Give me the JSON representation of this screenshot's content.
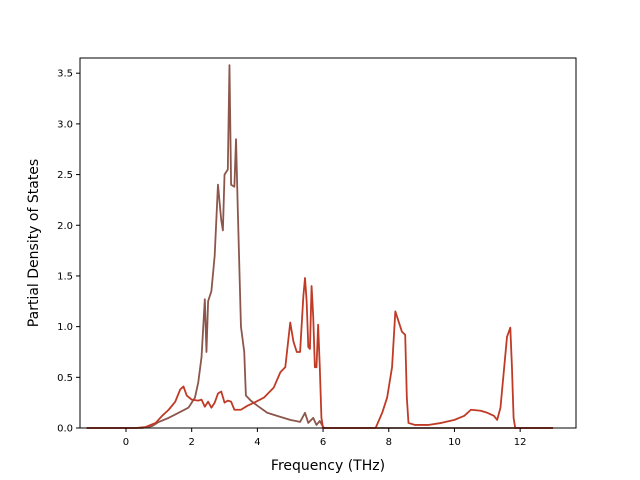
{
  "chart_data": {
    "type": "line",
    "title": "",
    "xlabel": "Frequency (THz)",
    "ylabel": "Partial Density of States",
    "xlim": [
      -1.4,
      13.7
    ],
    "ylim": [
      0,
      3.65
    ],
    "xticks": [
      0,
      2,
      4,
      6,
      8,
      10,
      12
    ],
    "yticks": [
      0.0,
      0.5,
      1.0,
      1.5,
      2.0,
      2.5,
      3.0,
      3.5
    ],
    "xtick_labels": [
      "0",
      "2",
      "4",
      "6",
      "8",
      "10",
      "12"
    ],
    "ytick_labels": [
      "0.0",
      "0.5",
      "1.0",
      "1.5",
      "2.0",
      "2.5",
      "3.0",
      "3.5"
    ],
    "grid": false,
    "legend": "none",
    "series": [
      {
        "color": "#8c564b",
        "points": [
          [
            -1.2,
            0
          ],
          [
            0.5,
            0
          ],
          [
            0.8,
            0.02
          ],
          [
            1.0,
            0.06
          ],
          [
            1.3,
            0.1
          ],
          [
            1.6,
            0.15
          ],
          [
            1.9,
            0.2
          ],
          [
            2.1,
            0.3
          ],
          [
            2.2,
            0.45
          ],
          [
            2.3,
            0.7
          ],
          [
            2.4,
            1.27
          ],
          [
            2.45,
            0.75
          ],
          [
            2.5,
            1.25
          ],
          [
            2.6,
            1.35
          ],
          [
            2.7,
            1.7
          ],
          [
            2.8,
            2.4
          ],
          [
            2.9,
            2.05
          ],
          [
            2.95,
            1.95
          ],
          [
            3.0,
            2.5
          ],
          [
            3.1,
            2.55
          ],
          [
            3.15,
            3.58
          ],
          [
            3.2,
            2.4
          ],
          [
            3.3,
            2.38
          ],
          [
            3.35,
            2.85
          ],
          [
            3.4,
            2.2
          ],
          [
            3.5,
            1.0
          ],
          [
            3.6,
            0.75
          ],
          [
            3.65,
            0.32
          ],
          [
            3.8,
            0.27
          ],
          [
            4.0,
            0.22
          ],
          [
            4.3,
            0.15
          ],
          [
            4.6,
            0.12
          ],
          [
            5.0,
            0.08
          ],
          [
            5.3,
            0.06
          ],
          [
            5.45,
            0.15
          ],
          [
            5.55,
            0.05
          ],
          [
            5.7,
            0.1
          ],
          [
            5.8,
            0.03
          ],
          [
            5.9,
            0.07
          ],
          [
            6.0,
            0.01
          ],
          [
            6.05,
            0
          ],
          [
            13.0,
            0
          ]
        ]
      },
      {
        "color": "#c03b26",
        "points": [
          [
            -1.2,
            0
          ],
          [
            0.3,
            0
          ],
          [
            0.6,
            0.01
          ],
          [
            0.9,
            0.05
          ],
          [
            1.1,
            0.12
          ],
          [
            1.3,
            0.18
          ],
          [
            1.5,
            0.26
          ],
          [
            1.65,
            0.38
          ],
          [
            1.75,
            0.41
          ],
          [
            1.85,
            0.32
          ],
          [
            2.0,
            0.28
          ],
          [
            2.2,
            0.27
          ],
          [
            2.3,
            0.28
          ],
          [
            2.4,
            0.21
          ],
          [
            2.5,
            0.26
          ],
          [
            2.6,
            0.2
          ],
          [
            2.7,
            0.25
          ],
          [
            2.8,
            0.34
          ],
          [
            2.9,
            0.36
          ],
          [
            3.0,
            0.25
          ],
          [
            3.1,
            0.27
          ],
          [
            3.2,
            0.26
          ],
          [
            3.3,
            0.18
          ],
          [
            3.5,
            0.18
          ],
          [
            3.7,
            0.22
          ],
          [
            3.9,
            0.25
          ],
          [
            4.2,
            0.3
          ],
          [
            4.5,
            0.4
          ],
          [
            4.7,
            0.55
          ],
          [
            4.85,
            0.6
          ],
          [
            5.0,
            1.04
          ],
          [
            5.1,
            0.85
          ],
          [
            5.2,
            0.75
          ],
          [
            5.3,
            0.75
          ],
          [
            5.4,
            1.3
          ],
          [
            5.45,
            1.48
          ],
          [
            5.5,
            1.25
          ],
          [
            5.55,
            0.8
          ],
          [
            5.6,
            0.78
          ],
          [
            5.65,
            1.4
          ],
          [
            5.7,
            1.1
          ],
          [
            5.75,
            0.6
          ],
          [
            5.8,
            0.6
          ],
          [
            5.85,
            1.02
          ],
          [
            5.9,
            0.6
          ],
          [
            5.95,
            0.1
          ],
          [
            6.0,
            0
          ],
          [
            7.6,
            0
          ],
          [
            7.8,
            0.15
          ],
          [
            7.95,
            0.3
          ],
          [
            8.1,
            0.6
          ],
          [
            8.2,
            1.15
          ],
          [
            8.3,
            1.05
          ],
          [
            8.4,
            0.95
          ],
          [
            8.5,
            0.92
          ],
          [
            8.55,
            0.3
          ],
          [
            8.6,
            0.05
          ],
          [
            8.8,
            0.03
          ],
          [
            9.2,
            0.03
          ],
          [
            9.6,
            0.05
          ],
          [
            10.0,
            0.08
          ],
          [
            10.3,
            0.12
          ],
          [
            10.5,
            0.18
          ],
          [
            10.8,
            0.17
          ],
          [
            11.0,
            0.15
          ],
          [
            11.2,
            0.12
          ],
          [
            11.3,
            0.08
          ],
          [
            11.4,
            0.2
          ],
          [
            11.5,
            0.55
          ],
          [
            11.6,
            0.9
          ],
          [
            11.7,
            0.99
          ],
          [
            11.75,
            0.6
          ],
          [
            11.8,
            0.1
          ],
          [
            11.85,
            0
          ],
          [
            13.0,
            0
          ]
        ]
      }
    ]
  }
}
